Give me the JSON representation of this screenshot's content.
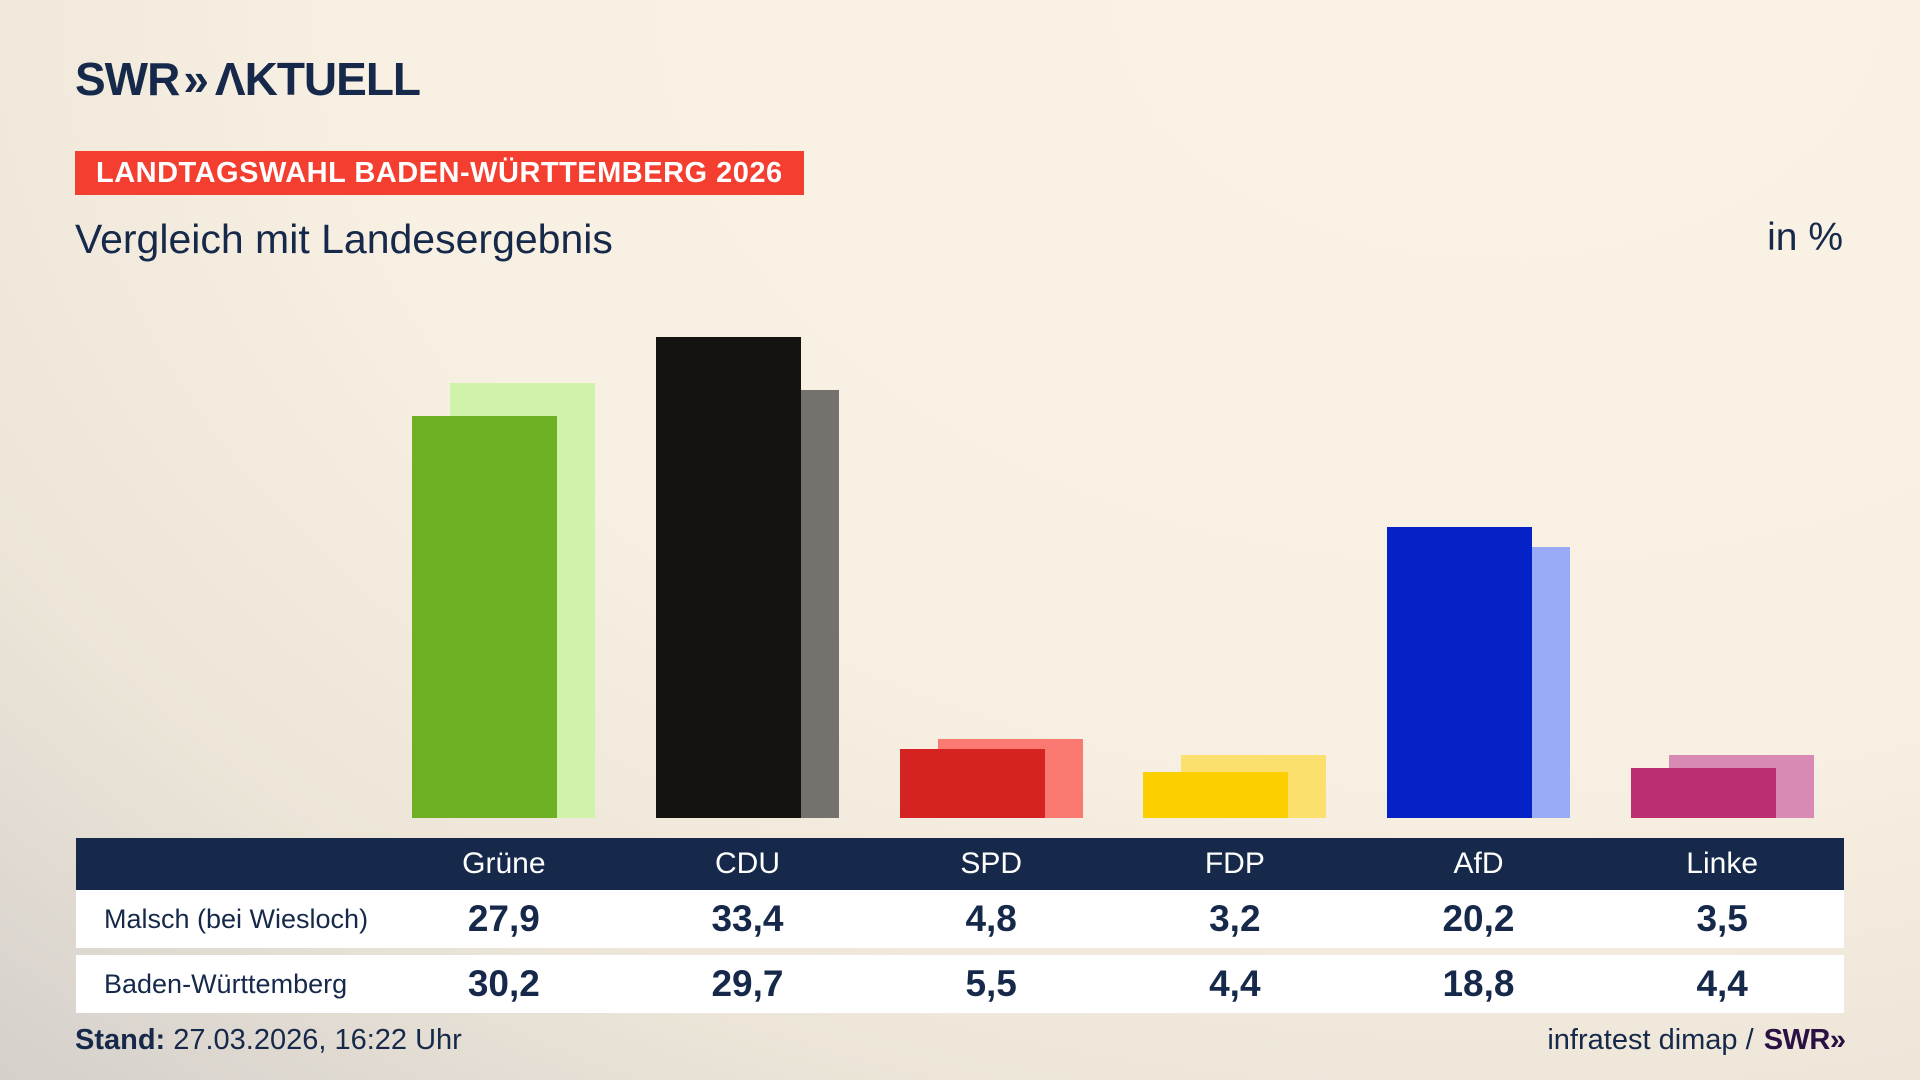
{
  "header": {
    "logo_swr": "SWR",
    "logo_chevron": "»",
    "logo_aktuell": "ΛKTUELL",
    "banner": "LANDTAGSWAHL BADEN-WÜRTTEMBERG 2026",
    "title": "Vergleich mit Landesergebnis",
    "unit_label": "in %",
    "banner_color": "#f43e30",
    "navy_color": "#16294a"
  },
  "chart_data": {
    "type": "bar",
    "categories": [
      "Grüne",
      "CDU",
      "SPD",
      "FDP",
      "AfD",
      "Linke"
    ],
    "series": [
      {
        "name": "Malsch (bei Wiesloch)",
        "values": [
          27.9,
          33.4,
          4.8,
          3.2,
          20.2,
          3.5
        ],
        "colors": [
          "#6eb023",
          "#141310",
          "#d42320",
          "#fccf00",
          "#0422c5",
          "#bb2e72"
        ]
      },
      {
        "name": "Baden-Württemberg",
        "values": [
          30.2,
          29.7,
          5.5,
          4.4,
          18.8,
          4.4
        ],
        "colors": [
          "#d0f2aa",
          "#75726e",
          "#fa7a72",
          "#fbe06e",
          "#99aaf6",
          "#d98ab4"
        ]
      }
    ],
    "unit": "%",
    "ylim": [
      0,
      38
    ],
    "title": "Vergleich mit Landesergebnis",
    "xlabel": "",
    "ylabel": "in %",
    "legend": "none",
    "grid": false
  },
  "table": {
    "rows": [
      {
        "label": "Malsch (bei Wiesloch)",
        "values": [
          "27,9",
          "33,4",
          "4,8",
          "3,2",
          "20,2",
          "3,5"
        ]
      },
      {
        "label": "Baden-Württemberg",
        "values": [
          "30,2",
          "29,7",
          "5,5",
          "4,4",
          "18,8",
          "4,4"
        ]
      }
    ]
  },
  "footer": {
    "stand_label": "Stand:",
    "stand_value": "27.03.2026, 16:22 Uhr",
    "source": "infratest dimap /",
    "source_logo_swr": "SWR",
    "source_logo_chevron": "»"
  }
}
